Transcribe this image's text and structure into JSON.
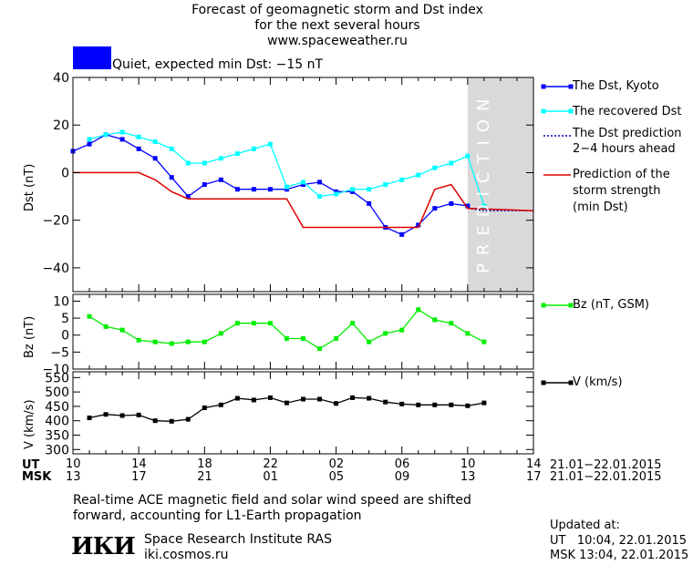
{
  "header": {
    "line1": "Forecast of geomagnetic storm and Dst index",
    "line2": "for the next several hours",
    "line3": "www.spaceweather.ru",
    "status": "Quiet, expected min Dst: −15 nT",
    "status_color": "#0000ff"
  },
  "legend": {
    "dst": "The Dst, Kyoto",
    "recovered": "The recovered Dst",
    "pred1": "The Dst prediction",
    "pred2": "2−4 hours ahead",
    "storm1": "Prediction of the",
    "storm2": "storm strength",
    "storm3": "(min Dst)",
    "bz": "Bz (nT, GSM)",
    "v": "V (km/s)"
  },
  "prediction_label": "PREDICTION",
  "axes": {
    "ut_label": "UT",
    "msk_label": "MSK",
    "ut_ticks": [
      "10",
      "14",
      "18",
      "22",
      "02",
      "06",
      "10",
      "14"
    ],
    "msk_ticks": [
      "13",
      "17",
      "21",
      "01",
      "05",
      "09",
      "13",
      "17"
    ],
    "date_range_ut": "21.01−22.01.2015",
    "date_range_msk": "21.01−22.01.2015"
  },
  "footer": {
    "note1": "Real-time ACE magnetic field and solar wind speed are shifted",
    "note2": "forward, accounting for L1-Earth propagation",
    "logo": "ИКИ",
    "org": "Space Research Institute RAS",
    "site": "iki.cosmos.ru",
    "updated": "Updated at:",
    "ut_time": "UT   10:04, 22.01.2015",
    "msk_time": "MSK 13:04, 22.01.2015"
  },
  "chart_data": [
    {
      "type": "line",
      "ylabel": "Dst (nT)",
      "ylim": [
        -50,
        40
      ],
      "yticks": [
        40,
        20,
        0,
        -20,
        -40
      ],
      "xlim": [
        10,
        38
      ],
      "prediction_start": 34,
      "series": [
        {
          "name": "The Dst, Kyoto",
          "color": "#0000ff",
          "x": [
            10,
            11,
            12,
            13,
            14,
            15,
            16,
            17,
            18,
            19,
            20,
            21,
            22,
            23,
            24,
            25,
            26,
            27,
            28,
            29,
            30,
            31,
            32,
            33,
            34
          ],
          "y": [
            9,
            12,
            16,
            14,
            10,
            6,
            -2,
            -10,
            -5,
            -3,
            -7,
            -7,
            -7,
            -7,
            -5,
            -4,
            -8,
            -8,
            -13,
            -23,
            -26,
            -22,
            -15,
            -13,
            -14
          ]
        },
        {
          "name": "The recovered Dst",
          "color": "#00ffff",
          "x": [
            11,
            12,
            13,
            14,
            15,
            16,
            17,
            18,
            19,
            20,
            21,
            22,
            23,
            24,
            25,
            26,
            27,
            28,
            29,
            30,
            31,
            32,
            33,
            34,
            35
          ],
          "y": [
            14,
            16,
            17,
            15,
            13,
            10,
            4,
            4,
            6,
            8,
            10,
            12,
            -6,
            -4,
            -10,
            -9,
            -7,
            -7,
            -5,
            -3,
            -1,
            2,
            4,
            7,
            -14
          ]
        },
        {
          "name": "The Dst prediction 2−4 hours ahead",
          "color": "#0000cc",
          "x": [
            34,
            35,
            36,
            37,
            38
          ],
          "y": [
            -15,
            -16,
            -16,
            -16,
            -16
          ]
        },
        {
          "name": "Prediction of the storm strength (min Dst)",
          "color": "#dd0000",
          "x": [
            10,
            14,
            15,
            16,
            17,
            23,
            24,
            30,
            31,
            32,
            33,
            34,
            38
          ],
          "y": [
            0,
            0,
            -3,
            -8,
            -11,
            -11,
            -23,
            -23,
            -23,
            -7,
            -5,
            -15,
            -16
          ]
        }
      ]
    },
    {
      "type": "line",
      "ylabel": "Bz (nT)",
      "ylim": [
        -10,
        12
      ],
      "yticks": [
        10,
        5,
        0,
        -5,
        -10
      ],
      "series": [
        {
          "name": "Bz (nT, GSM)",
          "color": "#00ee00",
          "x": [
            11,
            12,
            13,
            14,
            15,
            16,
            17,
            18,
            19,
            20,
            21,
            22,
            23,
            24,
            25,
            26,
            27,
            28,
            29,
            30,
            31,
            32,
            33,
            34,
            35
          ],
          "y": [
            5.5,
            2.5,
            1.5,
            -1.5,
            -2,
            -2.5,
            -2,
            -2,
            0.5,
            3.5,
            3.5,
            3.5,
            -1,
            -1,
            -4,
            -1,
            3.5,
            -2,
            0.5,
            1.5,
            7.5,
            4.5,
            3.5,
            0.5,
            -2
          ]
        }
      ]
    },
    {
      "type": "line",
      "ylabel": "V (km/s)",
      "ylim": [
        285,
        570
      ],
      "yticks": [
        550,
        500,
        450,
        400,
        350,
        300
      ],
      "series": [
        {
          "name": "V (km/s)",
          "color": "#000000",
          "x": [
            11,
            12,
            13,
            14,
            15,
            16,
            17,
            18,
            19,
            20,
            21,
            22,
            23,
            24,
            25,
            26,
            27,
            28,
            29,
            30,
            31,
            32,
            33,
            34,
            35
          ],
          "y": [
            410,
            422,
            418,
            420,
            400,
            398,
            405,
            445,
            455,
            478,
            472,
            480,
            462,
            475,
            475,
            460,
            480,
            478,
            465,
            458,
            455,
            455,
            455,
            452,
            462
          ]
        }
      ]
    }
  ]
}
